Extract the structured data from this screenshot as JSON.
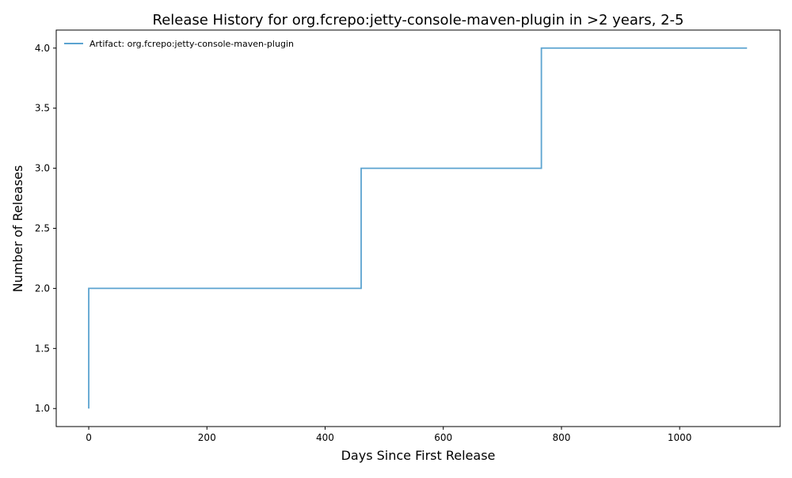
{
  "chart_data": {
    "type": "line",
    "step": "post",
    "title": "Release History for org.fcrepo:jetty-console-maven-plugin in >2 years, 2-5",
    "xlabel": "Days Since First Release",
    "ylabel": "Number of Releases",
    "xlim": [
      -55,
      1170
    ],
    "ylim": [
      0.85,
      4.15
    ],
    "xticks": [
      0,
      200,
      400,
      600,
      800,
      1000
    ],
    "xtick_labels": [
      "0",
      "200",
      "400",
      "600",
      "800",
      "1000"
    ],
    "yticks": [
      1.0,
      1.5,
      2.0,
      2.5,
      3.0,
      3.5,
      4.0
    ],
    "ytick_labels": [
      "1.0",
      "1.5",
      "2.0",
      "2.5",
      "3.0",
      "3.5",
      "4.0"
    ],
    "grid": false,
    "legend": {
      "placement": "top-left",
      "frame": false
    },
    "series": [
      {
        "name": "Artifact: org.fcrepo:jetty-console-maven-plugin",
        "color": "#5ba3d0",
        "x": [
          0,
          0,
          461,
          766,
          1114
        ],
        "y": [
          1,
          2,
          3,
          4,
          4
        ]
      }
    ]
  }
}
